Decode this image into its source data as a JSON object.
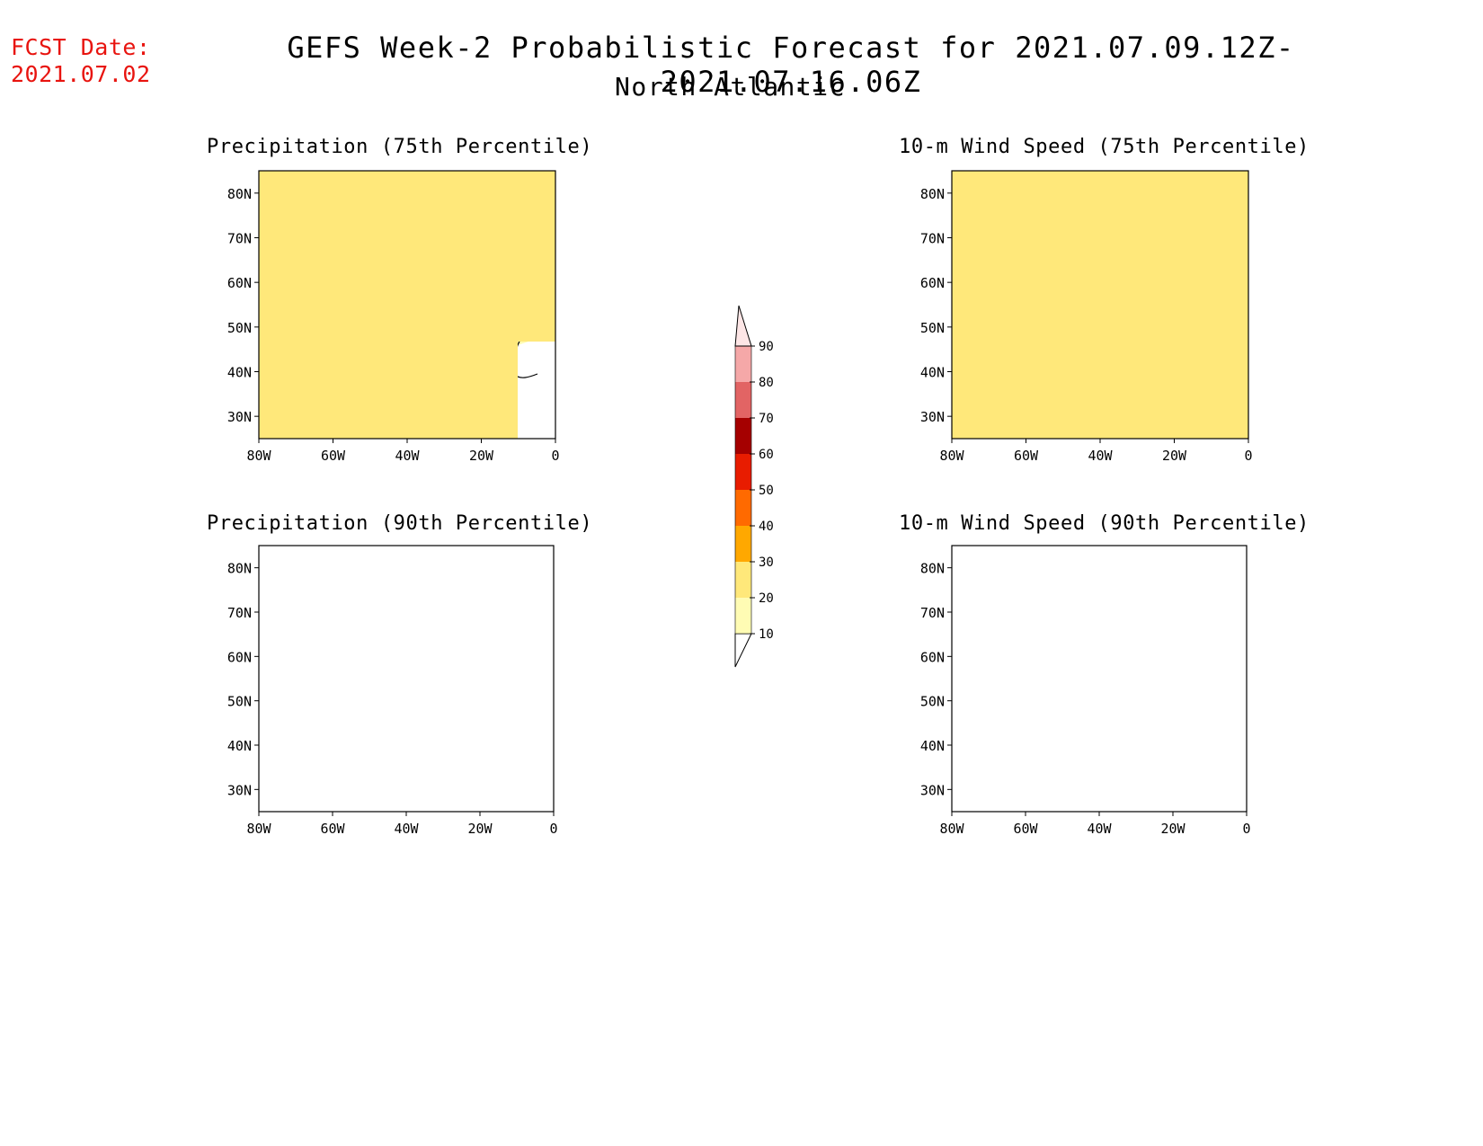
{
  "header": {
    "fcst_label": "FCST Date:",
    "fcst_date": "2021.07.02",
    "title": "GEFS Week-2 Probabilistic Forecast for 2021.07.09.12Z-2021.07.16.06Z",
    "region": "North Atlantic"
  },
  "colors": {
    "c10": "#fffcb4",
    "c20": "#ffe87a",
    "c30": "#ffa800",
    "c40": "#ff6a00",
    "c50": "#e81c00",
    "c60": "#a50000",
    "c70": "#e26464",
    "c80": "#f5a8a8",
    "c90": "#fde6e6",
    "coast": "#000000",
    "date_text": "#e8140f"
  },
  "colorbar": {
    "levels": [
      "10",
      "20",
      "30",
      "40",
      "50",
      "60",
      "70",
      "80",
      "90"
    ]
  },
  "maps": {
    "lon_labels": [
      "80W",
      "60W",
      "40W",
      "20W",
      "0"
    ],
    "lat_labels": [
      "80N",
      "70N",
      "60N",
      "50N",
      "40N",
      "30N"
    ],
    "lon_range": [
      -80,
      0
    ],
    "lat_range": [
      25,
      85
    ]
  },
  "panels": [
    {
      "id": "precip75",
      "title": "Precipitation (75th Percentile)"
    },
    {
      "id": "precip90",
      "title": "Precipitation (90th Percentile)"
    },
    {
      "id": "wind75",
      "title": "10-m Wind Speed (75th Percentile)"
    },
    {
      "id": "wind90",
      "title": "10-m Wind Speed (90th Percentile)"
    }
  ]
}
